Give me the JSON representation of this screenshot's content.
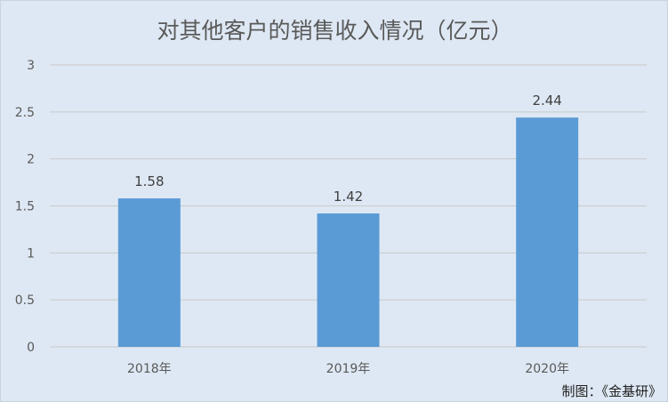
{
  "chart_data": {
    "type": "bar",
    "title": "对其他客户的销售收入情况（亿元）",
    "categories": [
      "2018年",
      "2019年",
      "2020年"
    ],
    "values": [
      1.58,
      1.42,
      2.44
    ],
    "data_labels": [
      "1.58",
      "1.42",
      "2.44"
    ],
    "ylim": [
      0,
      3
    ],
    "yticks": [
      "0",
      "0.5",
      "1",
      "1.5",
      "2",
      "2.5",
      "3"
    ],
    "grid": true,
    "bar_color": "#5b9bd5",
    "background": "#dee8f4"
  },
  "credit": "制图：《金基研》"
}
